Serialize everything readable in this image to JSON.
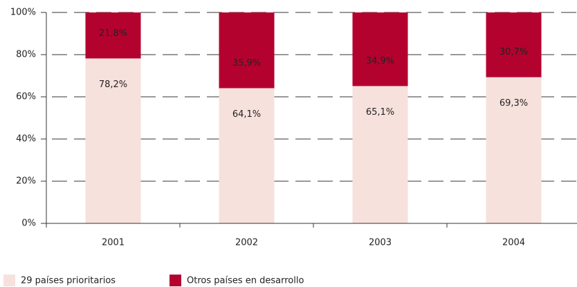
{
  "chart_data": {
    "type": "stacked_bar",
    "categories": [
      "2001",
      "2002",
      "2003",
      "2004"
    ],
    "series": [
      {
        "name": "29 países prioritarios",
        "color": "#f7e1dd",
        "values": [
          78.2,
          64.1,
          65.1,
          69.3
        ],
        "value_labels": [
          "78,2%",
          "64,1%",
          "65,1%",
          "69,3%"
        ]
      },
      {
        "name": "Otros países en desarrollo",
        "color": "#b4022f",
        "values": [
          21.8,
          35.9,
          34.9,
          30.7
        ],
        "value_labels": [
          "21,8%",
          "35,9%",
          "34,9%",
          "30,7%"
        ]
      }
    ],
    "ylim": [
      0,
      100
    ],
    "yticks": [
      {
        "value": 0,
        "label": "0%"
      },
      {
        "value": 20,
        "label": "20%"
      },
      {
        "value": 40,
        "label": "40%"
      },
      {
        "value": 60,
        "label": "60%"
      },
      {
        "value": 80,
        "label": "80%"
      },
      {
        "value": 100,
        "label": "100%"
      }
    ],
    "grid": true,
    "legend": "bottom"
  }
}
